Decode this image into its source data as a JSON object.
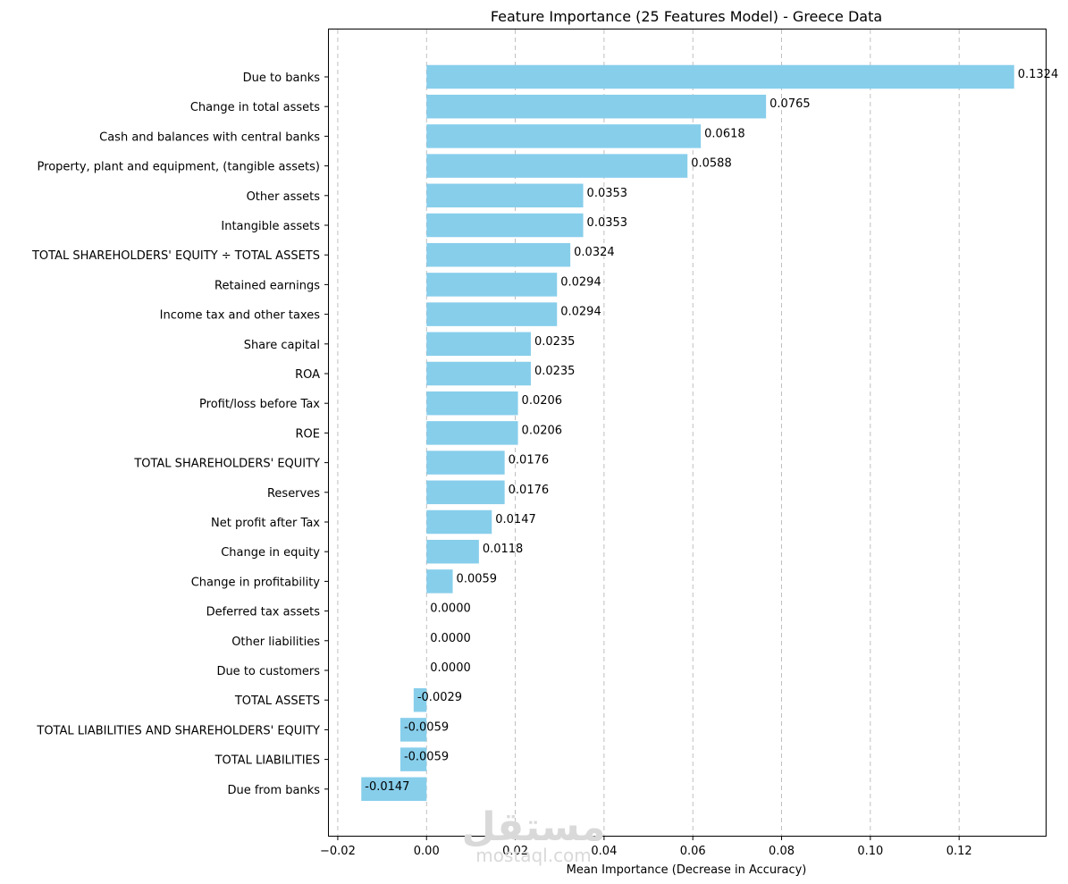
{
  "chart_data": {
    "type": "bar",
    "orientation": "horizontal",
    "title": "Feature Importance (25 Features Model) - Greece Data",
    "xlabel": "Mean Importance (Decrease in Accuracy)",
    "ylabel": "",
    "xlim": [
      -0.022,
      0.1395
    ],
    "xticks": [
      -0.02,
      0.0,
      0.02,
      0.04,
      0.06,
      0.08,
      0.1,
      0.12
    ],
    "xtick_labels": [
      "−0.02",
      "0.00",
      "0.02",
      "0.04",
      "0.06",
      "0.08",
      "0.10",
      "0.12"
    ],
    "grid": "x-dashed",
    "bar_color": "#87CEEB",
    "categories": [
      "Due to banks",
      "Change in total assets",
      "Cash and balances with central banks",
      "Property, plant and equipment, (tangible assets)",
      "Other assets",
      "Intangible assets",
      "TOTAL SHAREHOLDERS' EQUITY ÷ TOTAL ASSETS",
      "Retained earnings",
      "Income tax and other taxes",
      "Share capital",
      "ROA",
      "Profit/loss before Tax",
      "ROE",
      "TOTAL SHAREHOLDERS' EQUITY",
      "Reserves",
      "Net profit after Tax ",
      "Change in equity",
      "Change in profitability",
      "Deferred tax assets",
      "Other liabilities",
      "Due to customers",
      "TOTAL ASSETS",
      "TOTAL LIABILITIES AND SHAREHOLDERS' EQUITY",
      "TOTAL LIABILITIES",
      "Due from banks"
    ],
    "values": [
      0.1324,
      0.0765,
      0.0618,
      0.0588,
      0.0353,
      0.0353,
      0.0324,
      0.0294,
      0.0294,
      0.0235,
      0.0235,
      0.0206,
      0.0206,
      0.0176,
      0.0176,
      0.0147,
      0.0118,
      0.0059,
      0.0,
      0.0,
      0.0,
      -0.0029,
      -0.0059,
      -0.0059,
      -0.0147
    ],
    "value_labels": [
      "0.1324",
      "0.0765",
      "0.0618",
      "0.0588",
      "0.0353",
      "0.0353",
      "0.0324",
      "0.0294",
      "0.0294",
      "0.0235",
      "0.0235",
      "0.0206",
      "0.0206",
      "0.0176",
      "0.0176",
      "0.0147",
      "0.0118",
      "0.0059",
      "0.0000",
      "0.0000",
      "0.0000",
      "-0.0029",
      "-0.0059",
      "-0.0059",
      "-0.0147"
    ]
  },
  "watermark": {
    "logo_text": "مستقل",
    "site_text": "mostaql.com"
  }
}
